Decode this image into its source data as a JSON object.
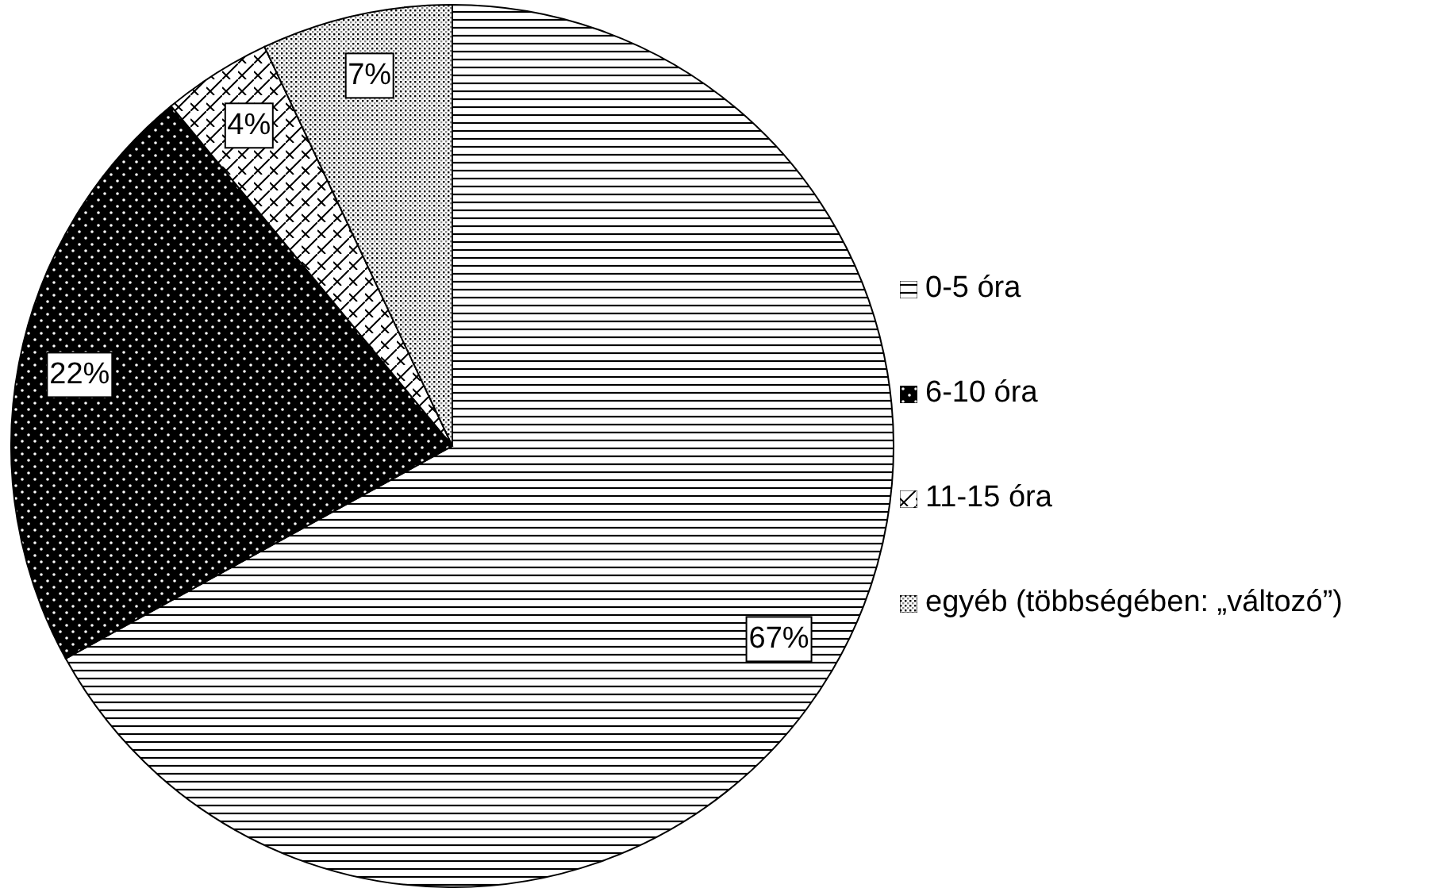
{
  "chart_data": {
    "type": "pie",
    "categories": [
      "0-5 óra",
      "6-10 óra",
      "11-15 óra",
      "egyéb (többségében: „változó”)"
    ],
    "values": [
      67,
      22,
      4,
      7
    ],
    "colors": [
      "#000000",
      "#000000",
      "#000000",
      "#000000"
    ],
    "value_labels": [
      "67%",
      "22%",
      "4%",
      "7%"
    ],
    "legend": "right"
  }
}
